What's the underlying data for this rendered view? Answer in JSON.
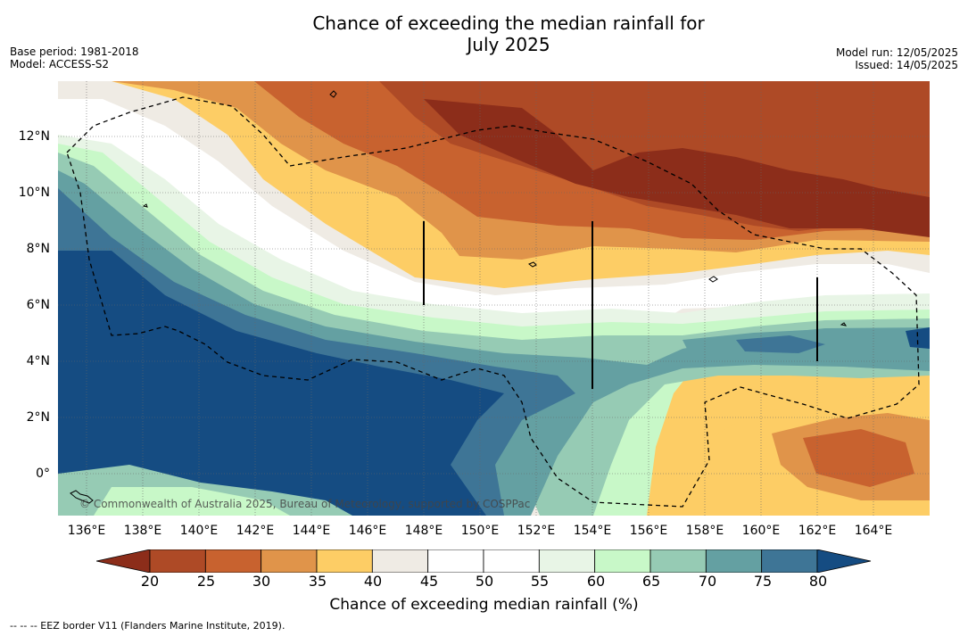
{
  "title_line1": "Chance of exceeding the median rainfall for",
  "title_line2": "July 2025",
  "base_period": "Base period: 1981-2018",
  "model": "Model: ACCESS-S2",
  "model_run": "Model run: 12/05/2025",
  "issued": "Issued: 14/05/2025",
  "copyright": "© Commonwealth of Australia 2025, Bureau of Meteorology, supported by COSPPac",
  "map": {
    "lat_labels": [
      "12°N",
      "10°N",
      "8°N",
      "6°N",
      "4°N",
      "2°N",
      "0°"
    ],
    "lon_labels": [
      "136°E",
      "138°E",
      "140°E",
      "142°E",
      "144°E",
      "146°E",
      "148°E",
      "150°E",
      "152°E",
      "154°E",
      "156°E",
      "158°E",
      "160°E",
      "162°E",
      "164°E"
    ]
  },
  "colorbar": {
    "title": "Chance of exceeding median rainfall (%)",
    "ticks": [
      "20",
      "25",
      "30",
      "35",
      "40",
      "45",
      "50",
      "55",
      "60",
      "65",
      "70",
      "75",
      "80"
    ],
    "colors": [
      "#8c2d1a",
      "#ae4a26",
      "#c8622f",
      "#e0944a",
      "#fdcd65",
      "#efebe4",
      "#ffffff",
      "#ffffff",
      "#e8f5e6",
      "#c8f8c8",
      "#96cbb4",
      "#64a0a2",
      "#3e7596",
      "#154c82"
    ]
  },
  "footer": "--  --  -- EEZ border V11 (Flanders Marine Institute, 2019)."
}
